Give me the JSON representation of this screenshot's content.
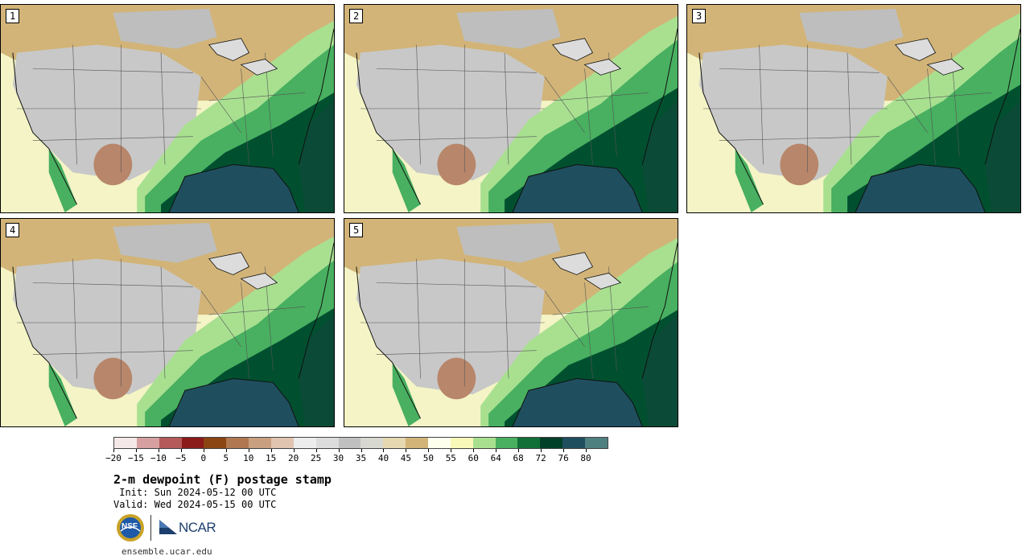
{
  "figure": {
    "title": "2-m dewpoint (F) postage stamp",
    "init_label": " Init:",
    "init_value": "Sun 2024-05-12 00 UTC",
    "valid_label": "Valid:",
    "valid_value": "Wed 2024-05-15 00 UTC",
    "site": "ensemble.ucar.edu",
    "logos": {
      "nsf": "NSF",
      "ncar": "NCAR"
    }
  },
  "panels": [
    {
      "label": "1"
    },
    {
      "label": "2"
    },
    {
      "label": "3"
    },
    {
      "label": "4"
    },
    {
      "label": "5"
    }
  ],
  "colorbar": {
    "ticks": [
      "−20",
      "−15",
      "−10",
      "−5",
      "0",
      "5",
      "10",
      "15",
      "20",
      "25",
      "30",
      "35",
      "40",
      "45",
      "50",
      "55",
      "60",
      "64",
      "68",
      "72",
      "76",
      "80"
    ],
    "colors": [
      "#f5e8e8",
      "#d6a0a0",
      "#b55a5a",
      "#8b1a1a",
      "#8b4513",
      "#b07850",
      "#c8a080",
      "#e0c4b0",
      "#ececec",
      "#dcdcdc",
      "#c0c0c0",
      "#d8d8d0",
      "#e6d8b0",
      "#d2b478",
      "#ffffee",
      "#f8f8b8",
      "#a8e090",
      "#48b060",
      "#107038",
      "#004028",
      "#1f4f5f",
      "#4f8080"
    ]
  },
  "colors": {
    "ocean": "#1f4f5f",
    "humid": "#005030",
    "moist": "#48b060",
    "light_moist": "#a8e090",
    "pale": "#f4f4c6",
    "dry_tan": "#d2b478",
    "gray": "#c8c8c8",
    "desert": "#b8866a"
  }
}
